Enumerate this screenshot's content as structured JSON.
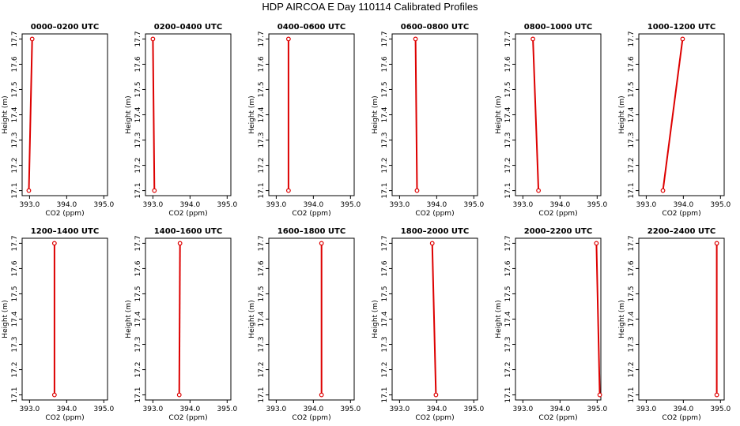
{
  "figure_title": "HDP AIRCOA E  Day 110114  Calibrated Profiles",
  "colors": {
    "series": "#dd0000",
    "axis": "#000000"
  },
  "chart_data": [
    {
      "type": "line",
      "title": "0000–0200 UTC",
      "xlabel": "CO2 (ppm)",
      "ylabel": "Height (m)",
      "xlim": [
        392.8,
        395.1
      ],
      "ylim": [
        17.08,
        17.72
      ],
      "xticks": [
        "393.0",
        "394.0",
        "395.0"
      ],
      "yticks": [
        "17.1",
        "17.2",
        "17.3",
        "17.4",
        "17.5",
        "17.6",
        "17.7"
      ],
      "series": [
        {
          "x": [
            392.98,
            393.07
          ],
          "y": [
            17.1,
            17.7
          ]
        }
      ]
    },
    {
      "type": "line",
      "title": "0200–0400 UTC",
      "xlabel": "CO2 (ppm)",
      "ylabel": "Height (m)",
      "xlim": [
        392.8,
        395.1
      ],
      "ylim": [
        17.08,
        17.72
      ],
      "xticks": [
        "393.0",
        "394.0",
        "395.0"
      ],
      "yticks": [
        "17.1",
        "17.2",
        "17.3",
        "17.4",
        "17.5",
        "17.6",
        "17.7"
      ],
      "series": [
        {
          "x": [
            393.04,
            393.0
          ],
          "y": [
            17.1,
            17.7
          ]
        }
      ]
    },
    {
      "type": "line",
      "title": "0400–0600 UTC",
      "xlabel": "CO2 (ppm)",
      "ylabel": "Height (m)",
      "xlim": [
        392.8,
        395.1
      ],
      "ylim": [
        17.08,
        17.72
      ],
      "xticks": [
        "393.0",
        "394.0",
        "395.0"
      ],
      "yticks": [
        "17.1",
        "17.2",
        "17.3",
        "17.4",
        "17.5",
        "17.6",
        "17.7"
      ],
      "series": [
        {
          "x": [
            393.33,
            393.33
          ],
          "y": [
            17.1,
            17.7
          ]
        }
      ]
    },
    {
      "type": "line",
      "title": "0600–0800 UTC",
      "xlabel": "CO2 (ppm)",
      "ylabel": "Height (m)",
      "xlim": [
        392.8,
        395.1
      ],
      "ylim": [
        17.08,
        17.72
      ],
      "xticks": [
        "393.0",
        "394.0",
        "395.0"
      ],
      "yticks": [
        "17.1",
        "17.2",
        "17.3",
        "17.4",
        "17.5",
        "17.6",
        "17.7"
      ],
      "series": [
        {
          "x": [
            393.47,
            393.43
          ],
          "y": [
            17.1,
            17.7
          ]
        }
      ]
    },
    {
      "type": "line",
      "title": "0800–1000 UTC",
      "xlabel": "CO2 (ppm)",
      "ylabel": "Height (m)",
      "xlim": [
        392.8,
        395.1
      ],
      "ylim": [
        17.08,
        17.72
      ],
      "xticks": [
        "393.0",
        "394.0",
        "395.0"
      ],
      "yticks": [
        "17.1",
        "17.2",
        "17.3",
        "17.4",
        "17.5",
        "17.6",
        "17.7"
      ],
      "series": [
        {
          "x": [
            393.42,
            393.27
          ],
          "y": [
            17.1,
            17.7
          ]
        }
      ]
    },
    {
      "type": "line",
      "title": "1000–1200 UTC",
      "xlabel": "CO2 (ppm)",
      "ylabel": "Height (m)",
      "xlim": [
        392.8,
        395.1
      ],
      "ylim": [
        17.08,
        17.72
      ],
      "xticks": [
        "393.0",
        "394.0",
        "395.0"
      ],
      "yticks": [
        "17.1",
        "17.2",
        "17.3",
        "17.4",
        "17.5",
        "17.6",
        "17.7"
      ],
      "series": [
        {
          "x": [
            393.45,
            393.98
          ],
          "y": [
            17.1,
            17.7
          ]
        }
      ]
    },
    {
      "type": "line",
      "title": "1200–1400 UTC",
      "xlabel": "CO2 (ppm)",
      "ylabel": "Height (m)",
      "xlim": [
        392.8,
        395.1
      ],
      "ylim": [
        17.08,
        17.72
      ],
      "xticks": [
        "393.0",
        "394.0",
        "395.0"
      ],
      "yticks": [
        "17.1",
        "17.2",
        "17.3",
        "17.4",
        "17.5",
        "17.6",
        "17.7"
      ],
      "series": [
        {
          "x": [
            393.67,
            393.67
          ],
          "y": [
            17.1,
            17.7
          ]
        }
      ]
    },
    {
      "type": "line",
      "title": "1400–1600 UTC",
      "xlabel": "CO2 (ppm)",
      "ylabel": "Height (m)",
      "xlim": [
        392.8,
        395.1
      ],
      "ylim": [
        17.08,
        17.72
      ],
      "xticks": [
        "393.0",
        "394.0",
        "395.0"
      ],
      "yticks": [
        "17.1",
        "17.2",
        "17.3",
        "17.4",
        "17.5",
        "17.6",
        "17.7"
      ],
      "series": [
        {
          "x": [
            393.71,
            393.73
          ],
          "y": [
            17.1,
            17.7
          ]
        }
      ]
    },
    {
      "type": "line",
      "title": "1600–1800 UTC",
      "xlabel": "CO2 (ppm)",
      "ylabel": "Height (m)",
      "xlim": [
        392.8,
        395.1
      ],
      "ylim": [
        17.08,
        17.72
      ],
      "xticks": [
        "393.0",
        "394.0",
        "395.0"
      ],
      "yticks": [
        "17.1",
        "17.2",
        "17.3",
        "17.4",
        "17.5",
        "17.6",
        "17.7"
      ],
      "series": [
        {
          "x": [
            394.22,
            394.22
          ],
          "y": [
            17.1,
            17.7
          ]
        }
      ]
    },
    {
      "type": "line",
      "title": "1800–2000 UTC",
      "xlabel": "CO2 (ppm)",
      "ylabel": "Height (m)",
      "xlim": [
        392.8,
        395.1
      ],
      "ylim": [
        17.08,
        17.72
      ],
      "xticks": [
        "393.0",
        "394.0",
        "395.0"
      ],
      "yticks": [
        "17.1",
        "17.2",
        "17.3",
        "17.4",
        "17.5",
        "17.6",
        "17.7"
      ],
      "series": [
        {
          "x": [
            393.98,
            393.88
          ],
          "y": [
            17.1,
            17.7
          ]
        }
      ]
    },
    {
      "type": "line",
      "title": "2000–2200 UTC",
      "xlabel": "CO2 (ppm)",
      "ylabel": "Height (m)",
      "xlim": [
        392.8,
        395.1
      ],
      "ylim": [
        17.08,
        17.72
      ],
      "xticks": [
        "393.0",
        "394.0",
        "395.0"
      ],
      "yticks": [
        "17.1",
        "17.2",
        "17.3",
        "17.4",
        "17.5",
        "17.6",
        "17.7"
      ],
      "series": [
        {
          "x": [
            395.07,
            394.98
          ],
          "y": [
            17.1,
            17.7
          ]
        }
      ]
    },
    {
      "type": "line",
      "title": "2200–2400 UTC",
      "xlabel": "CO2 (ppm)",
      "ylabel": "Height (m)",
      "xlim": [
        392.8,
        395.1
      ],
      "ylim": [
        17.08,
        17.72
      ],
      "xticks": [
        "393.0",
        "394.0",
        "395.0"
      ],
      "yticks": [
        "17.1",
        "17.2",
        "17.3",
        "17.4",
        "17.5",
        "17.6",
        "17.7"
      ],
      "series": [
        {
          "x": [
            394.9,
            394.9
          ],
          "y": [
            17.1,
            17.7
          ]
        }
      ]
    }
  ]
}
